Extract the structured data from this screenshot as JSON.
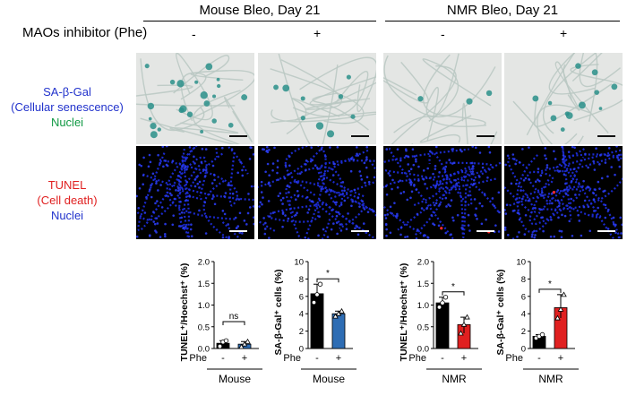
{
  "header": {
    "mouse_title": "Mouse Bleo, Day 21",
    "nmr_title": "NMR Bleo, Day 21",
    "treatment_label": "MAOs inhibitor (Phe)",
    "minus": "-",
    "plus": "+"
  },
  "rows": {
    "sabgal": {
      "line1": "SA-β-Gal",
      "line2": "(Cellular senescence)",
      "line3": "Nuclei",
      "color1": "#2233cc",
      "color3": "#119944"
    },
    "tunel": {
      "line1": "TUNEL",
      "line2": "(Cell death)",
      "line3": "Nuclei",
      "color1": "#e02020",
      "color3": "#2233cc"
    }
  },
  "colors": {
    "control_bar": "#000000",
    "mouse_phe_bar": "#2e6db4",
    "nmr_phe_bar": "#e02020",
    "sabgal_tissue": "#e4e6e4",
    "tunel_tissue": "#000000"
  },
  "chart_data": [
    {
      "type": "bar",
      "species": "Mouse",
      "ylabel": "TUNEL⁺/Hoechst⁺ (%)",
      "categories": [
        "-",
        "+"
      ],
      "group_label": "Phe",
      "values": [
        0.12,
        0.1
      ],
      "points": [
        [
          0.05,
          0.15,
          0.18
        ],
        [
          0.04,
          0.1,
          0.16
        ]
      ],
      "ylim": [
        0,
        2.0
      ],
      "yticks": [
        "0.0",
        "0.5",
        "1.0",
        "1.5",
        "2.0"
      ],
      "significance": "ns",
      "xlabel": "Mouse"
    },
    {
      "type": "bar",
      "species": "Mouse",
      "ylabel": "SA-β-Gal⁺ cells (%)",
      "categories": [
        "-",
        "+"
      ],
      "group_label": "Phe",
      "values": [
        6.3,
        4.0
      ],
      "points": [
        [
          5.3,
          6.2,
          7.4
        ],
        [
          3.7,
          4.0,
          4.3
        ]
      ],
      "ylim": [
        0,
        10
      ],
      "yticks": [
        "0",
        "2",
        "4",
        "6",
        "8",
        "10"
      ],
      "significance": "*",
      "xlabel": "Mouse"
    },
    {
      "type": "bar",
      "species": "NMR",
      "ylabel": "TUNEL⁺/Hoechst⁺ (%)",
      "categories": [
        "-",
        "+"
      ],
      "group_label": "Phe",
      "values": [
        1.05,
        0.55
      ],
      "points": [
        [
          0.95,
          1.05,
          1.18
        ],
        [
          0.35,
          0.55,
          0.72
        ]
      ],
      "ylim": [
        0,
        2.0
      ],
      "yticks": [
        "0.0",
        "0.5",
        "1.0",
        "1.5",
        "2.0"
      ],
      "significance": "*",
      "xlabel": "NMR"
    },
    {
      "type": "bar",
      "species": "NMR",
      "ylabel": "SA-β-Gal⁺ cells (%)",
      "categories": [
        "-",
        "+"
      ],
      "group_label": "Phe",
      "values": [
        1.4,
        4.7
      ],
      "points": [
        [
          1.2,
          1.4,
          1.6
        ],
        [
          3.5,
          4.5,
          6.2
        ]
      ],
      "ylim": [
        0,
        10
      ],
      "yticks": [
        "0",
        "2",
        "4",
        "6",
        "8",
        "10"
      ],
      "significance": "*",
      "xlabel": "NMR"
    }
  ]
}
